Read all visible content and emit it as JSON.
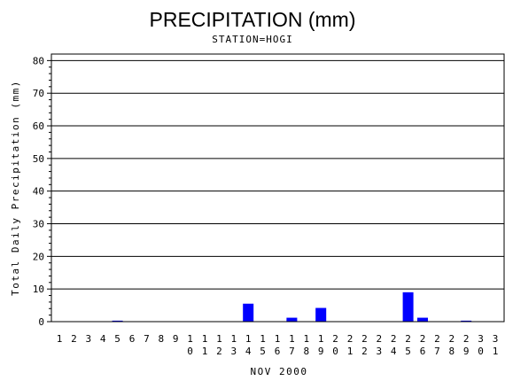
{
  "chart_data": {
    "type": "bar",
    "title": "PRECIPITATION (mm)",
    "subtitle": "STATION=HOGI",
    "xlabel": "NOV 2000",
    "ylabel": "Total Daily Precipitation (mm)",
    "ylim": [
      0,
      82
    ],
    "yticks": [
      0,
      10,
      20,
      30,
      40,
      50,
      60,
      70,
      80
    ],
    "grid": true,
    "categories": [
      "1",
      "2",
      "3",
      "4",
      "5",
      "6",
      "7",
      "8",
      "9",
      "10",
      "11",
      "12",
      "13",
      "14",
      "15",
      "16",
      "17",
      "18",
      "19",
      "20",
      "21",
      "22",
      "23",
      "24",
      "25",
      "26",
      "27",
      "28",
      "29",
      "30",
      "31"
    ],
    "values": [
      0,
      0,
      0,
      0,
      0.3,
      0,
      0,
      0,
      0,
      0,
      0,
      0,
      0,
      5.5,
      0,
      0,
      1.2,
      0,
      4.2,
      0,
      0,
      0,
      0,
      0,
      9.0,
      1.2,
      0,
      0,
      0.3,
      0,
      0
    ],
    "bar_color": "#0000ff"
  }
}
